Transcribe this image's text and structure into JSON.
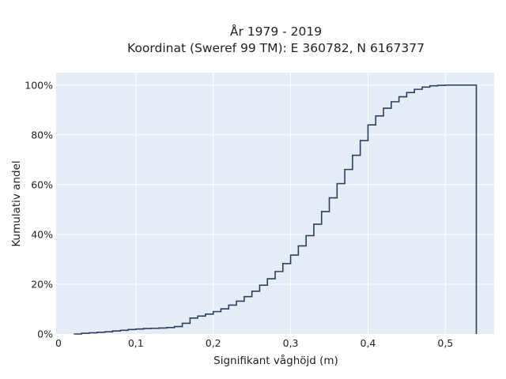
{
  "chart_data": {
    "type": "line",
    "subtype": "cumulative-step",
    "title": "År 1979 - 2019",
    "subtitle": "Koordinat (Sweref 99 TM): E 360782, N 6167377",
    "xlabel": "Signifikant våghöjd (m)",
    "ylabel": "Kumulativ andel",
    "xlim": [
      -0.003,
      0.563
    ],
    "ylim": [
      0,
      1.05
    ],
    "x_ticks": [
      0,
      0.1,
      0.2,
      0.3,
      0.4,
      0.5
    ],
    "x_tick_labels": [
      "0",
      "0,1",
      "0,2",
      "0,3",
      "0,4",
      "0,5"
    ],
    "y_ticks": [
      0,
      0.2,
      0.4,
      0.6,
      0.8,
      1.0
    ],
    "y_tick_labels": [
      "0%",
      "20%",
      "40%",
      "60%",
      "80%",
      "100%"
    ],
    "grid": true,
    "bin_width": 0.01,
    "x": [
      0.02,
      0.03,
      0.04,
      0.05,
      0.06,
      0.07,
      0.08,
      0.09,
      0.1,
      0.11,
      0.12,
      0.13,
      0.14,
      0.15,
      0.16,
      0.17,
      0.18,
      0.19,
      0.2,
      0.21,
      0.22,
      0.23,
      0.24,
      0.25,
      0.26,
      0.27,
      0.28,
      0.29,
      0.3,
      0.31,
      0.32,
      0.33,
      0.34,
      0.35,
      0.36,
      0.37,
      0.38,
      0.39,
      0.4,
      0.41,
      0.42,
      0.43,
      0.44,
      0.45,
      0.46,
      0.47,
      0.48,
      0.49,
      0.5,
      0.51,
      0.52,
      0.53,
      0.54
    ],
    "y": [
      0.0,
      0.003,
      0.005,
      0.007,
      0.009,
      0.012,
      0.015,
      0.018,
      0.02,
      0.022,
      0.023,
      0.024,
      0.026,
      0.03,
      0.043,
      0.064,
      0.072,
      0.08,
      0.09,
      0.101,
      0.116,
      0.132,
      0.15,
      0.172,
      0.196,
      0.222,
      0.251,
      0.283,
      0.317,
      0.354,
      0.395,
      0.441,
      0.492,
      0.547,
      0.604,
      0.661,
      0.718,
      0.777,
      0.84,
      0.876,
      0.907,
      0.933,
      0.953,
      0.97,
      0.983,
      0.992,
      0.997,
      0.999,
      1.0,
      1.0,
      1.0,
      1.0,
      1.0
    ],
    "line_color": "#2a3f5f",
    "plot_bg": "#e5ecf6"
  }
}
